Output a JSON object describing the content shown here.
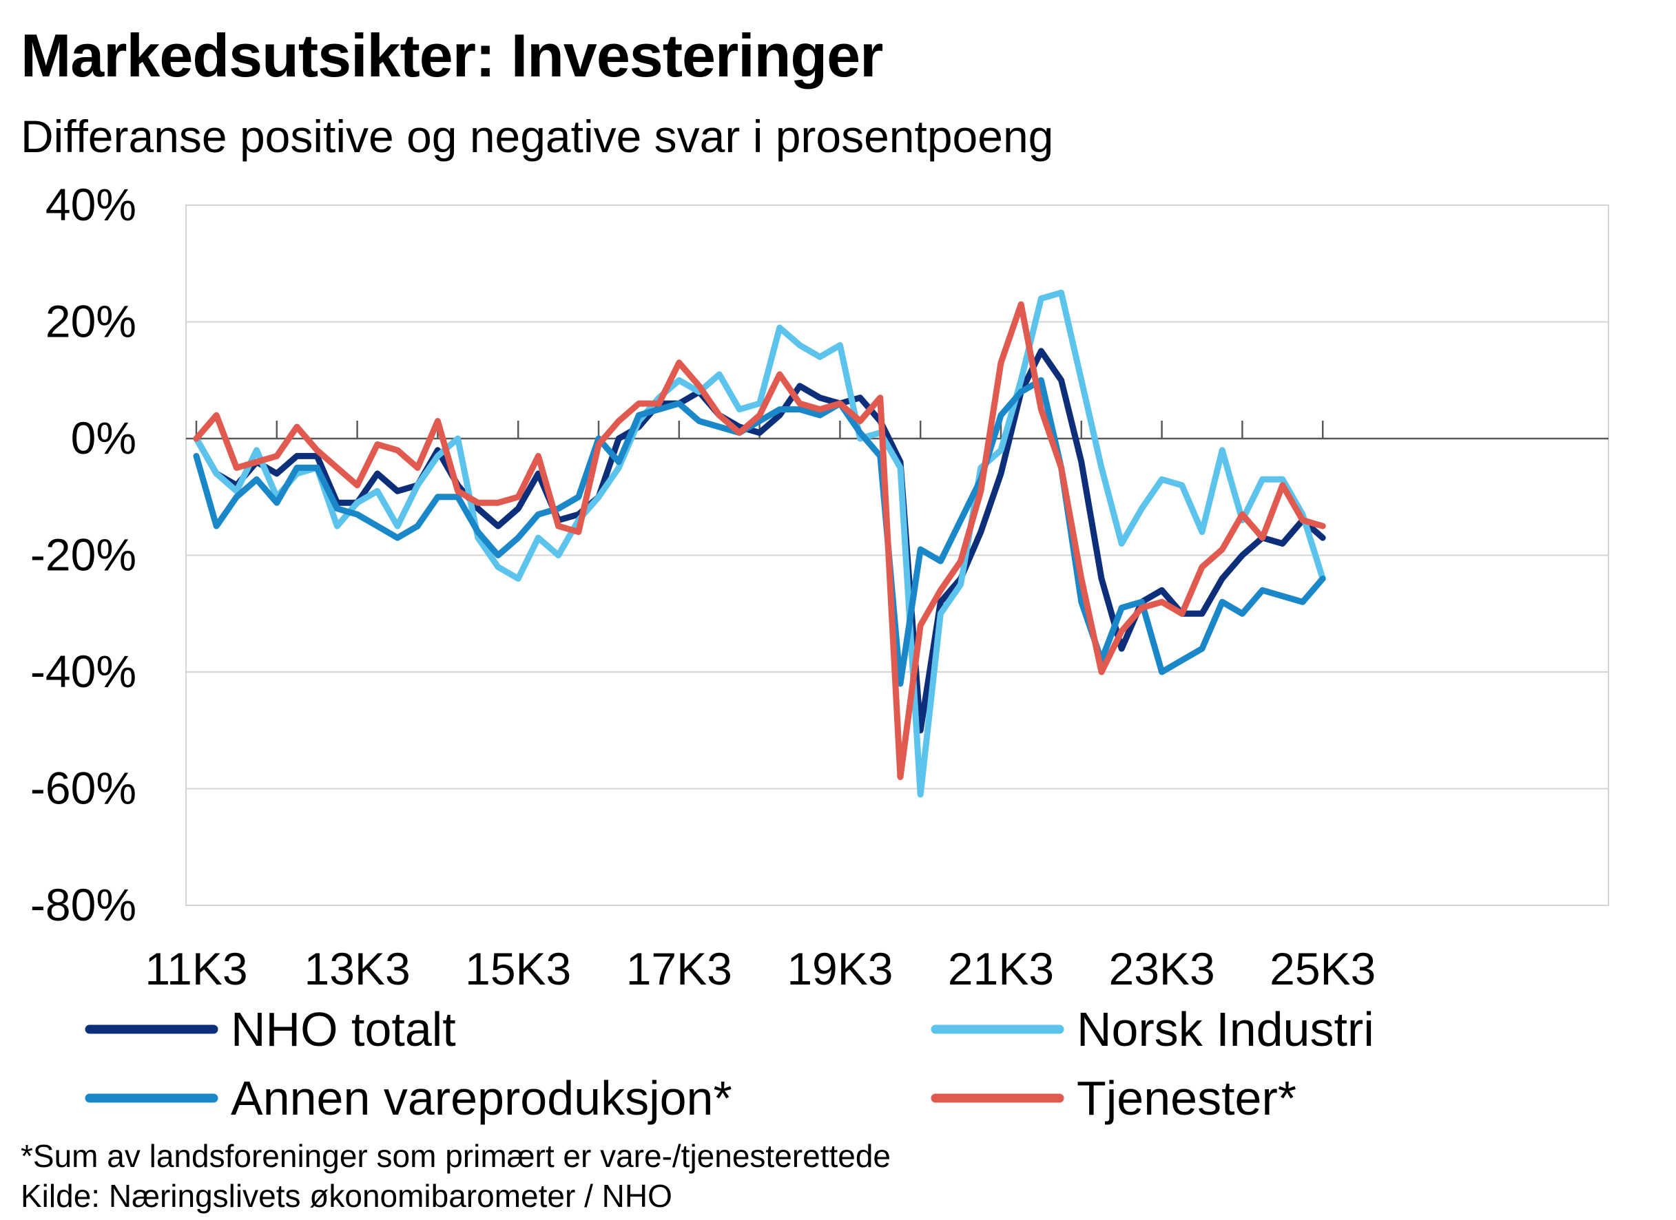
{
  "chart_data": {
    "type": "line",
    "title": "Markedsutsikter:  Investeringer",
    "subtitle": "Differanse positive og negative svar i prosentpoeng",
    "ylim": [
      -80,
      40
    ],
    "y_ticks": [
      40,
      20,
      0,
      -20,
      -40,
      -60,
      -80
    ],
    "y_tick_labels": [
      "40%",
      "20%",
      "0%",
      "-20%",
      "-40%",
      "-60%",
      "-80%"
    ],
    "x_tick_labels": [
      "11K3",
      "13K3",
      "15K3",
      "17K3",
      "19K3",
      "21K3",
      "23K3",
      "25K3"
    ],
    "grid": true,
    "legend_position": "bottom",
    "categories": [
      "11K3",
      "11K4",
      "12K1",
      "12K2",
      "12K3",
      "12K4",
      "13K1",
      "13K2",
      "13K3",
      "13K4",
      "14K1",
      "14K2",
      "14K3",
      "14K4",
      "15K1",
      "15K2",
      "15K3",
      "15K4",
      "16K1",
      "16K2",
      "16K3",
      "16K4",
      "17K1",
      "17K2",
      "17K3",
      "17K4",
      "18K1",
      "18K2",
      "18K3",
      "18K4",
      "19K1",
      "19K2",
      "19K3",
      "19K4",
      "20K1",
      "20K2",
      "20K3",
      "20K4",
      "21K1",
      "21K2",
      "21K3",
      "21K4",
      "22K1",
      "22K2",
      "22K3",
      "22K4",
      "23K1",
      "23K2",
      "23K3",
      "23K4",
      "24K1",
      "24K2",
      "24K3",
      "24K4",
      "25K1",
      "25K2",
      "25K3"
    ],
    "series": [
      {
        "name": "NHO totalt",
        "color": "#0d2f7a",
        "values": [
          0,
          -6,
          -8,
          -4,
          -6,
          -3,
          -3,
          -11,
          -11,
          -6,
          -9,
          -8,
          -2,
          -8,
          -12,
          -15,
          -12,
          -6,
          -14,
          -13,
          -10,
          0,
          2,
          6,
          6,
          8,
          4,
          2,
          1,
          4,
          9,
          7,
          6,
          7,
          3,
          -4,
          -50,
          -28,
          -24,
          -16,
          -6,
          8,
          15,
          10,
          -4,
          -24,
          -36,
          -28,
          -26,
          -30,
          -30,
          -24,
          -20,
          -17,
          -18,
          -14,
          -17
        ]
      },
      {
        "name": "Norsk Industri",
        "color": "#5bc3ec",
        "values": [
          0,
          -6,
          -9,
          -2,
          -10,
          -6,
          -5,
          -15,
          -11,
          -9,
          -15,
          -8,
          -3,
          0,
          -17,
          -22,
          -24,
          -17,
          -20,
          -14,
          -10,
          -5,
          3,
          7,
          10,
          8,
          11,
          5,
          6,
          19,
          16,
          14,
          16,
          0,
          1,
          -5,
          -61,
          -30,
          -25,
          -5,
          -2,
          10,
          24,
          25,
          10,
          -5,
          -18,
          -12,
          -7,
          -8,
          -16,
          -2,
          -14,
          -7,
          -7,
          -13,
          -24
        ]
      },
      {
        "name": "Annen vareproduksjon*",
        "color": "#1a88c8",
        "values": [
          -3,
          -15,
          -10,
          -7,
          -11,
          -5,
          -5,
          -12,
          -13,
          -15,
          -17,
          -15,
          -10,
          -10,
          -16,
          -20,
          -17,
          -13,
          -12,
          -10,
          0,
          -4,
          4,
          5,
          6,
          3,
          2,
          1,
          3,
          5,
          5,
          4,
          6,
          1,
          -3,
          -42,
          -19,
          -21,
          -14,
          -7,
          4,
          8,
          10,
          -5,
          -28,
          -38,
          -29,
          -28,
          -40,
          -38,
          -36,
          -28,
          -30,
          -26,
          -27,
          -28,
          -24
        ]
      },
      {
        "name": "Tjenester*",
        "color": "#e15a50",
        "values": [
          0,
          4,
          -5,
          -4,
          -3,
          2,
          -2,
          -5,
          -8,
          -1,
          -2,
          -5,
          3,
          -9,
          -11,
          -11,
          -10,
          -3,
          -15,
          -16,
          -1,
          3,
          6,
          6,
          13,
          9,
          4,
          1,
          4,
          11,
          6,
          5,
          6,
          3,
          7,
          -58,
          -32,
          -26,
          -21,
          -9,
          13,
          23,
          5,
          -5,
          -24,
          -40,
          -33,
          -29,
          -28,
          -30,
          -22,
          -19,
          -13,
          -17,
          -8,
          -14,
          -15
        ]
      }
    ]
  },
  "footnotes": {
    "line1": "*Sum av landsforeninger som primært er vare-/tjenesterettede",
    "line2": "Kilde: Næringslivets økonomibarometer / NHO"
  }
}
